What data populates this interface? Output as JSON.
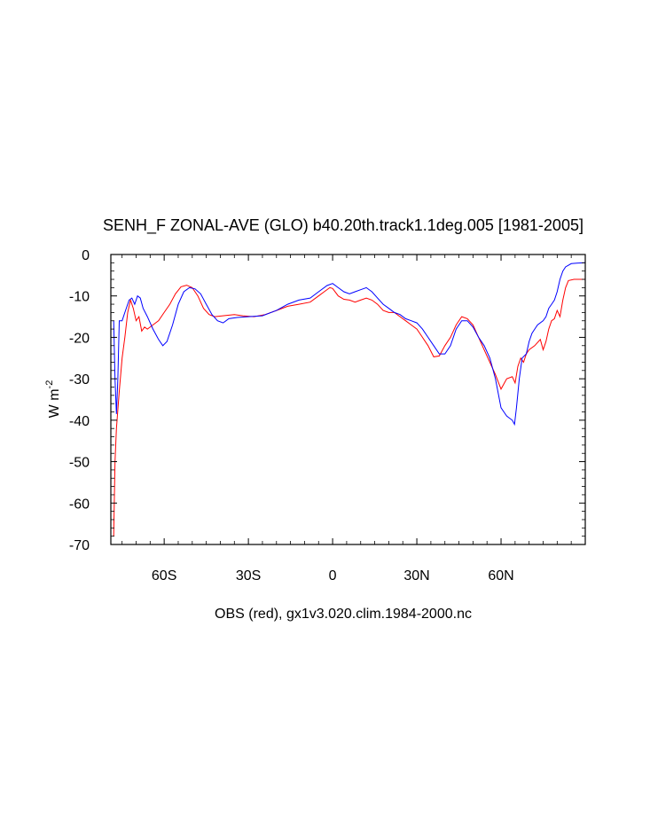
{
  "chart_data": {
    "type": "line",
    "title": "SENH_F ZONAL-AVE (GLO) b40.20th.track1.1deg.005 [1981-2005]",
    "ylabel_base": "W m",
    "ylabel_exp": "-2",
    "caption": "OBS (red), gx1v3.020.clim.1984-2000.nc",
    "xlim": [
      -79,
      90
    ],
    "ylim": [
      -70,
      0
    ],
    "x_ticks": [
      {
        "value": -60,
        "label": "60S"
      },
      {
        "value": -30,
        "label": "30S"
      },
      {
        "value": 0,
        "label": "0"
      },
      {
        "value": 30,
        "label": "30N"
      },
      {
        "value": 60,
        "label": "60N"
      }
    ],
    "y_ticks": [
      {
        "value": 0,
        "label": "0"
      },
      {
        "value": -10,
        "label": "-10"
      },
      {
        "value": -20,
        "label": "-20"
      },
      {
        "value": -30,
        "label": "-30"
      },
      {
        "value": -40,
        "label": "-40"
      },
      {
        "value": -50,
        "label": "-50"
      },
      {
        "value": -60,
        "label": "-60"
      },
      {
        "value": -70,
        "label": "-70"
      }
    ],
    "grid": false,
    "series": [
      {
        "color": "#ff0000",
        "points": [
          [
            -78,
            -68
          ],
          [
            -77.5,
            -50
          ],
          [
            -77,
            -42
          ],
          [
            -76,
            -33
          ],
          [
            -75,
            -25
          ],
          [
            -74,
            -20
          ],
          [
            -73,
            -14
          ],
          [
            -72,
            -11
          ],
          [
            -71,
            -13
          ],
          [
            -70,
            -16
          ],
          [
            -69,
            -15
          ],
          [
            -68,
            -18.5
          ],
          [
            -67,
            -17.5
          ],
          [
            -66,
            -18
          ],
          [
            -64,
            -17
          ],
          [
            -62,
            -16
          ],
          [
            -60,
            -14
          ],
          [
            -58,
            -12
          ],
          [
            -56,
            -9.5
          ],
          [
            -54,
            -7.8
          ],
          [
            -52,
            -7.4
          ],
          [
            -50,
            -8
          ],
          [
            -48,
            -10
          ],
          [
            -46,
            -13
          ],
          [
            -44,
            -14.5
          ],
          [
            -42,
            -15
          ],
          [
            -38,
            -14.7
          ],
          [
            -35,
            -14.5
          ],
          [
            -32,
            -14.8
          ],
          [
            -28,
            -15
          ],
          [
            -24,
            -14.5
          ],
          [
            -20,
            -13.5
          ],
          [
            -16,
            -12.5
          ],
          [
            -12,
            -12
          ],
          [
            -8,
            -11.5
          ],
          [
            -5,
            -10
          ],
          [
            -3,
            -9
          ],
          [
            -1,
            -8
          ],
          [
            0,
            -8.2
          ],
          [
            2,
            -10
          ],
          [
            4,
            -10.8
          ],
          [
            6,
            -11
          ],
          [
            8,
            -11.5
          ],
          [
            10,
            -11
          ],
          [
            12,
            -10.5
          ],
          [
            14,
            -11
          ],
          [
            16,
            -12
          ],
          [
            18,
            -13.5
          ],
          [
            20,
            -14
          ],
          [
            22,
            -14
          ],
          [
            24,
            -15
          ],
          [
            26,
            -16
          ],
          [
            28,
            -17
          ],
          [
            30,
            -18
          ],
          [
            32,
            -20
          ],
          [
            34,
            -22
          ],
          [
            36,
            -24.7
          ],
          [
            38,
            -24.5
          ],
          [
            40,
            -22
          ],
          [
            42,
            -20
          ],
          [
            44,
            -17
          ],
          [
            46,
            -15
          ],
          [
            48,
            -15.5
          ],
          [
            50,
            -17
          ],
          [
            52,
            -20
          ],
          [
            54,
            -23
          ],
          [
            56,
            -26
          ],
          [
            58,
            -29
          ],
          [
            60,
            -32.5
          ],
          [
            62,
            -30
          ],
          [
            64,
            -29.5
          ],
          [
            65,
            -31
          ],
          [
            66,
            -27
          ],
          [
            67,
            -25
          ],
          [
            68,
            -26
          ],
          [
            69,
            -24
          ],
          [
            70,
            -23
          ],
          [
            72,
            -22
          ],
          [
            74,
            -20.5
          ],
          [
            75,
            -23
          ],
          [
            76,
            -21
          ],
          [
            77,
            -18
          ],
          [
            78,
            -16
          ],
          [
            79,
            -15.5
          ],
          [
            80,
            -13.5
          ],
          [
            81,
            -15
          ],
          [
            82,
            -11
          ],
          [
            83,
            -8
          ],
          [
            84,
            -6.3
          ],
          [
            86,
            -6
          ],
          [
            88,
            -6
          ],
          [
            90,
            -6
          ]
        ]
      },
      {
        "color": "#0000ff",
        "points": [
          [
            -78,
            -16
          ],
          [
            -77.5,
            -30
          ],
          [
            -77,
            -38.5
          ],
          [
            -76.5,
            -30
          ],
          [
            -76,
            -16
          ],
          [
            -75,
            -16
          ],
          [
            -74,
            -14
          ],
          [
            -72.5,
            -11
          ],
          [
            -71.5,
            -10.5
          ],
          [
            -70.5,
            -12
          ],
          [
            -69.5,
            -10
          ],
          [
            -68.5,
            -10.5
          ],
          [
            -67.5,
            -13
          ],
          [
            -66,
            -15
          ],
          [
            -64,
            -18
          ],
          [
            -62,
            -20.5
          ],
          [
            -60.5,
            -22
          ],
          [
            -59,
            -21
          ],
          [
            -57,
            -17
          ],
          [
            -55,
            -12
          ],
          [
            -53,
            -9
          ],
          [
            -51,
            -8
          ],
          [
            -49,
            -8.3
          ],
          [
            -47,
            -9.5
          ],
          [
            -45,
            -12
          ],
          [
            -43,
            -14.5
          ],
          [
            -41,
            -16
          ],
          [
            -39,
            -16.5
          ],
          [
            -37,
            -15.5
          ],
          [
            -34,
            -15.2
          ],
          [
            -30,
            -15
          ],
          [
            -25,
            -14.8
          ],
          [
            -20,
            -13.5
          ],
          [
            -16,
            -12
          ],
          [
            -12,
            -11
          ],
          [
            -8,
            -10.5
          ],
          [
            -5,
            -9
          ],
          [
            -2,
            -7.5
          ],
          [
            0,
            -7
          ],
          [
            2,
            -8
          ],
          [
            4,
            -9
          ],
          [
            6,
            -9.5
          ],
          [
            8,
            -9
          ],
          [
            10,
            -8.5
          ],
          [
            12,
            -8
          ],
          [
            14,
            -9
          ],
          [
            16,
            -10.5
          ],
          [
            18,
            -12
          ],
          [
            20,
            -13
          ],
          [
            22,
            -14
          ],
          [
            24,
            -14.5
          ],
          [
            26,
            -15.5
          ],
          [
            28,
            -16
          ],
          [
            30,
            -16.5
          ],
          [
            32,
            -18
          ],
          [
            34,
            -20
          ],
          [
            36,
            -22
          ],
          [
            38,
            -24
          ],
          [
            40,
            -24
          ],
          [
            42,
            -22
          ],
          [
            44,
            -18
          ],
          [
            46,
            -16
          ],
          [
            48,
            -16
          ],
          [
            50,
            -17.5
          ],
          [
            52,
            -20
          ],
          [
            54,
            -22
          ],
          [
            56,
            -25
          ],
          [
            58,
            -30
          ],
          [
            60,
            -37
          ],
          [
            61,
            -38
          ],
          [
            62,
            -39
          ],
          [
            63,
            -39.5
          ],
          [
            64,
            -40
          ],
          [
            64.8,
            -41
          ],
          [
            65.5,
            -37
          ],
          [
            66.5,
            -30
          ],
          [
            67.5,
            -25
          ],
          [
            69,
            -24
          ],
          [
            70,
            -21
          ],
          [
            71,
            -19
          ],
          [
            72,
            -18
          ],
          [
            73,
            -17
          ],
          [
            75,
            -16
          ],
          [
            76,
            -15
          ],
          [
            77,
            -13
          ],
          [
            78,
            -12
          ],
          [
            79,
            -11
          ],
          [
            80,
            -9
          ],
          [
            81,
            -6
          ],
          [
            82,
            -4
          ],
          [
            83,
            -3
          ],
          [
            85,
            -2.2
          ],
          [
            87,
            -2.1
          ],
          [
            90,
            -2
          ]
        ]
      }
    ]
  }
}
